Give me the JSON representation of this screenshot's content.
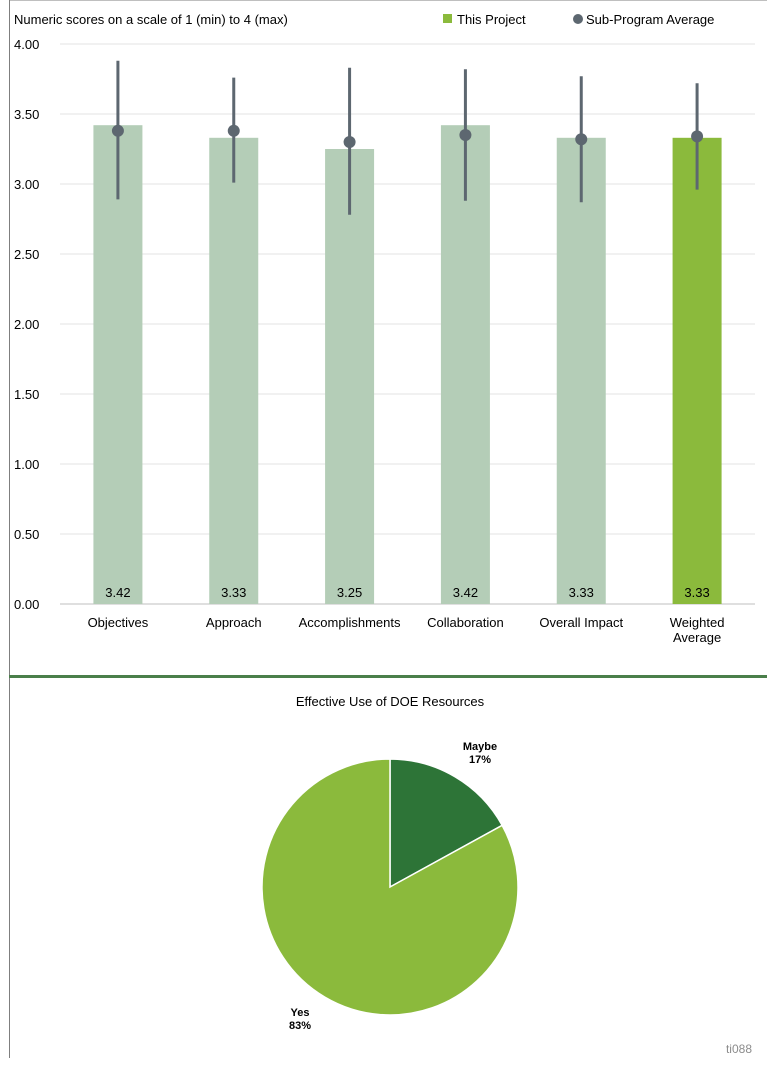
{
  "chart_data": [
    {
      "type": "bar",
      "subtitle": "Numeric scores on a scale of 1 (min) to 4 (max)",
      "legend": {
        "placement": "top-right",
        "items": [
          {
            "label": "This Project",
            "marker": "square",
            "color": "#8bba3c"
          },
          {
            "label": "Sub-Program Average",
            "marker": "circle",
            "color": "#5d6770"
          }
        ]
      },
      "categories": [
        {
          "lines": [
            "Objectives"
          ]
        },
        {
          "lines": [
            "Approach"
          ]
        },
        {
          "lines": [
            "Accomplishments"
          ]
        },
        {
          "lines": [
            "Collaboration"
          ]
        },
        {
          "lines": [
            "Overall Impact"
          ]
        },
        {
          "lines": [
            "Weighted",
            "Average"
          ]
        }
      ],
      "series": [
        {
          "name": "This Project",
          "values": [
            3.42,
            3.33,
            3.25,
            3.42,
            3.33,
            3.33
          ],
          "labels": [
            "3.42",
            "3.33",
            "3.25",
            "3.42",
            "3.33",
            "3.33"
          ],
          "colors": [
            "#b4cdb7",
            "#b4cdb7",
            "#b4cdb7",
            "#b4cdb7",
            "#b4cdb7",
            "#8bba3c"
          ]
        },
        {
          "name": "Sub-Program Average",
          "values": [
            3.38,
            3.38,
            3.3,
            3.35,
            3.32,
            3.34
          ],
          "error_low": [
            2.89,
            3.01,
            2.78,
            2.88,
            2.87,
            2.96
          ],
          "error_high": [
            3.88,
            3.76,
            3.83,
            3.82,
            3.77,
            3.72
          ],
          "color": "#5d6770"
        }
      ],
      "ylim": [
        0,
        4
      ],
      "yticks": [
        "0.00",
        "0.50",
        "1.00",
        "1.50",
        "2.00",
        "2.50",
        "3.00",
        "3.50",
        "4.00"
      ],
      "grid": true
    },
    {
      "type": "pie",
      "title": "Effective Use of DOE Resources",
      "slices": [
        {
          "label": "Maybe",
          "percent_label": "17%",
          "value": 17,
          "color": "#2d7437"
        },
        {
          "label": "Yes",
          "percent_label": "83%",
          "value": 83,
          "color": "#8bba3c"
        }
      ]
    }
  ],
  "footer_tag": "ti088"
}
